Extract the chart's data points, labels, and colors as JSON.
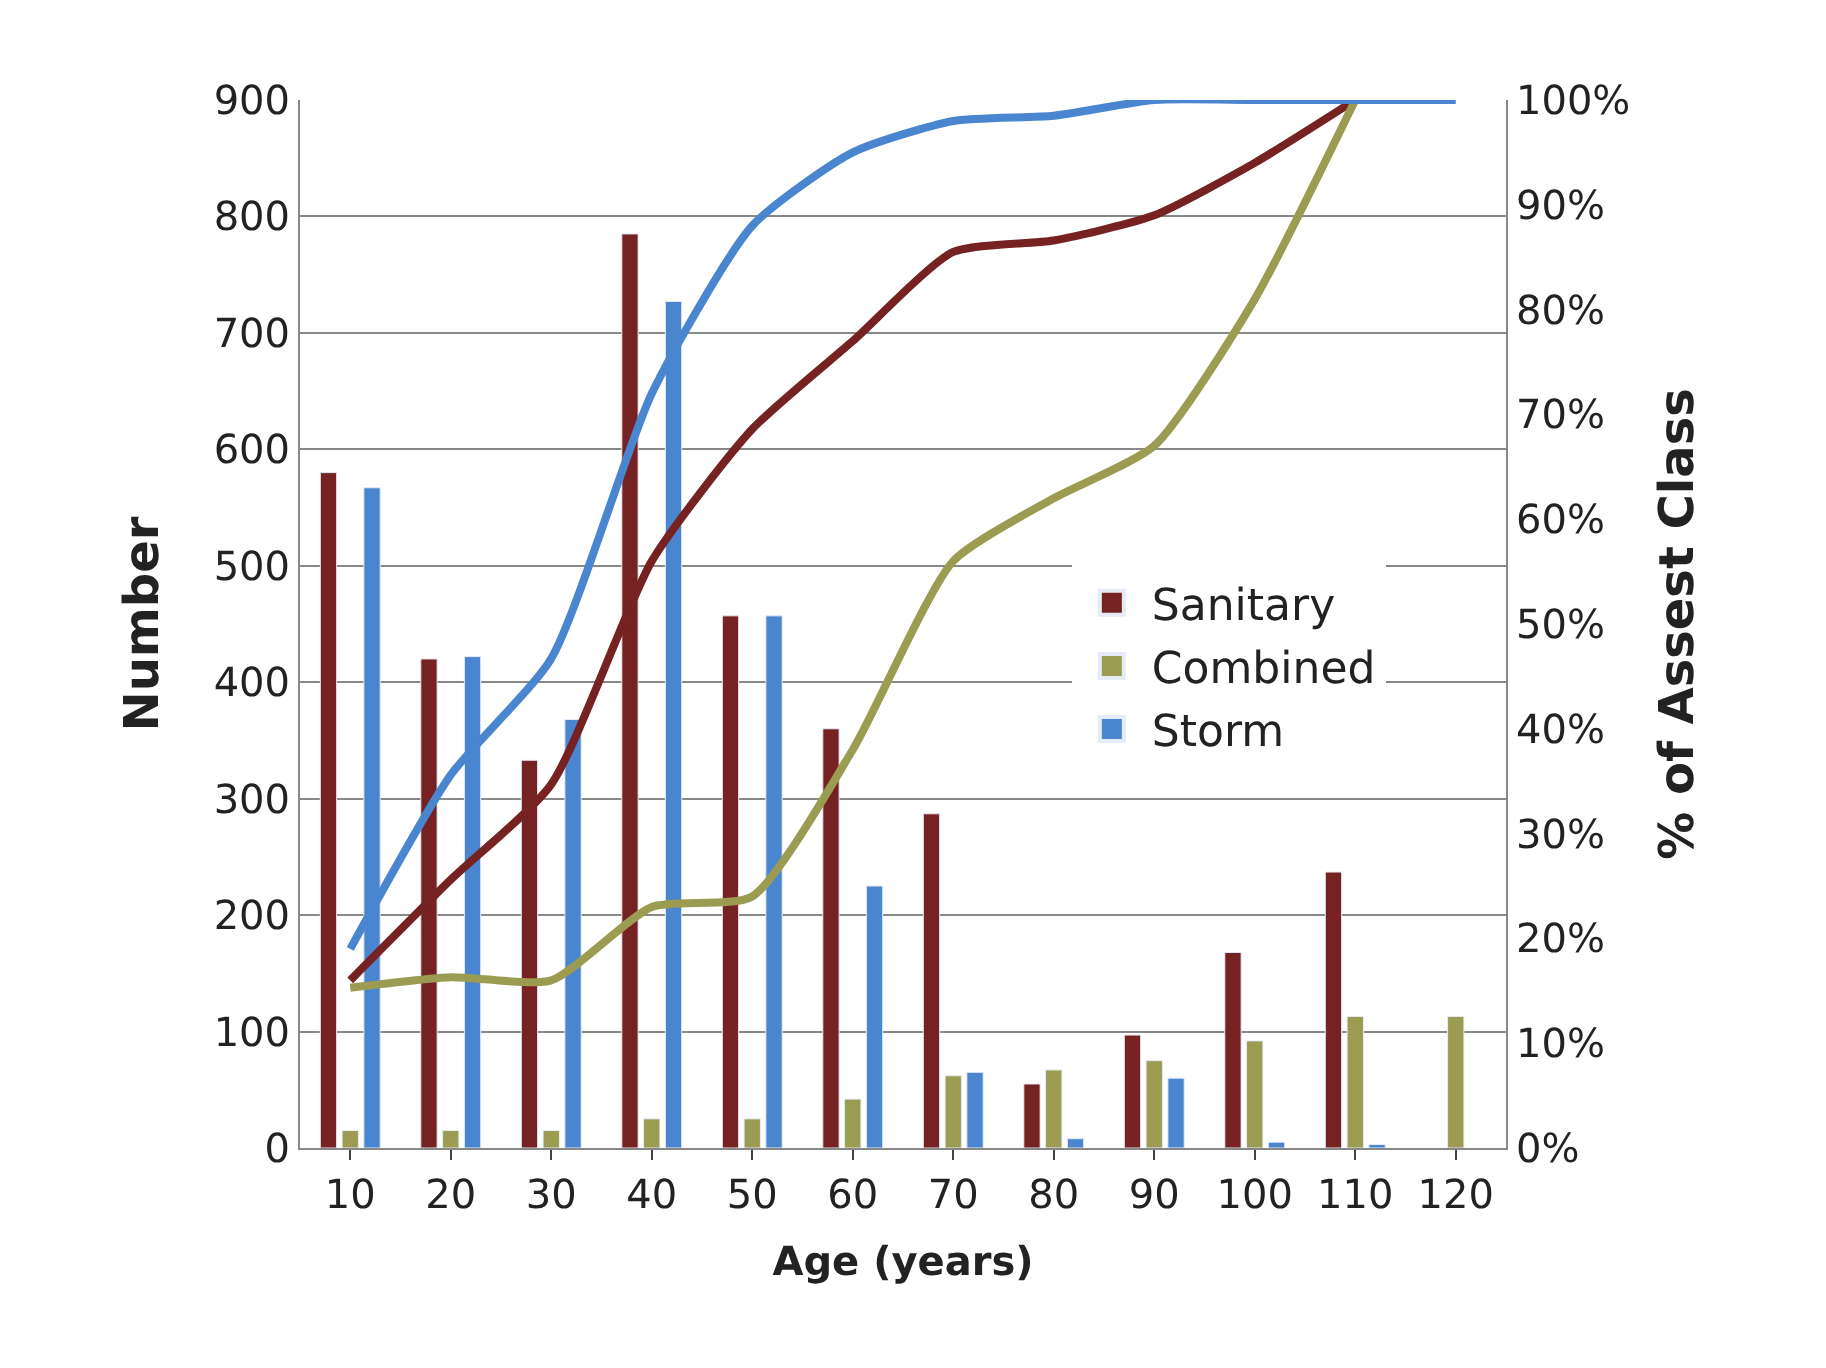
{
  "chart_data": {
    "type": "bar",
    "xlabel": "Age (years)",
    "ylabel": "Number",
    "y2label": "% of Assest Class",
    "categories": [
      "10",
      "20",
      "30",
      "40",
      "50",
      "60",
      "70",
      "80",
      "90",
      "100",
      "110",
      "120"
    ],
    "series": [
      {
        "name": "Sanitary",
        "color": "#772222",
        "values": [
          580,
          420,
          333,
          785,
          457,
          360,
          287,
          55,
          97,
          168,
          237,
          null
        ]
      },
      {
        "name": "Combined",
        "color": "#9b9b52",
        "values": [
          15,
          15,
          15,
          25,
          25,
          42,
          62,
          67,
          75,
          92,
          113,
          113
        ]
      },
      {
        "name": "Storm",
        "color": "#4a86cf",
        "values": [
          567,
          422,
          368,
          727,
          457,
          225,
          65,
          8,
          60,
          5,
          3,
          null
        ]
      },
      {
        "type": "line",
        "axis": "y2",
        "color": "#772222",
        "values": [
          16,
          25.6,
          34.7,
          56,
          68.6,
          77,
          85.5,
          86.6,
          89,
          94,
          100,
          null
        ]
      },
      {
        "type": "line",
        "axis": "y2",
        "color": "#9b9b52",
        "values": [
          15.3,
          16.3,
          16,
          23,
          24,
          38,
          56,
          62,
          67,
          81,
          100,
          null
        ]
      },
      {
        "type": "line",
        "axis": "y2",
        "color": "#4a86cf",
        "values": [
          19,
          35.6,
          46.7,
          72,
          88,
          95,
          98,
          98.5,
          100,
          100,
          100,
          100
        ]
      }
    ],
    "ylim": [
      0,
      900
    ],
    "yticks": [
      0,
      100,
      200,
      300,
      400,
      500,
      600,
      700,
      800,
      900
    ],
    "y2lim": [
      0,
      100
    ],
    "y2ticks": [
      {
        "value": 0,
        "label": "0%"
      },
      {
        "value": 10,
        "label": "10%"
      },
      {
        "value": 20,
        "label": "20%"
      },
      {
        "value": 30,
        "label": "30%"
      },
      {
        "value": 40,
        "label": "40%"
      },
      {
        "value": 50,
        "label": "50%"
      },
      {
        "value": 60,
        "label": "60%"
      },
      {
        "value": 70,
        "label": "70%"
      },
      {
        "value": 80,
        "label": "80%"
      },
      {
        "value": 90,
        "label": "90%"
      },
      {
        "value": 100,
        "label": "100%"
      }
    ],
    "grid": "y",
    "legend": "right",
    "marker": "none",
    "line_style": "solid"
  }
}
